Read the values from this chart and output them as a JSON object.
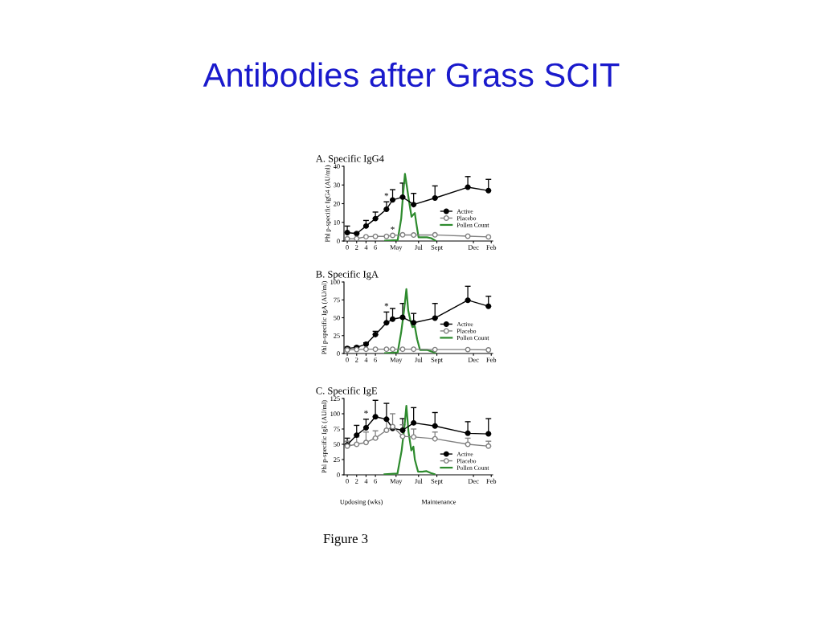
{
  "chart_data": [
    {
      "type": "line",
      "title": "A. Specific IgG4",
      "ylabel": "Phl p-specific IgG4 (AU/ml)",
      "annotations": [
        "Antibodies after Grass SCIT",
        {
          "text": "*",
          "x": 8.36,
          "y": 21
        },
        {
          "text": "*",
          "x": 9.67,
          "y": 3
        }
      ],
      "xlim": [
        -0.7,
        31
      ],
      "xticks": [
        0,
        2,
        4,
        6,
        {
          "value": 10.4,
          "label": "May"
        },
        {
          "value": 15.2,
          "label": "Jul"
        },
        {
          "value": 19.1,
          "label": "Sept"
        },
        {
          "value": 26.9,
          "label": "Dec"
        },
        {
          "value": 30.7,
          "label": "Feb"
        }
      ],
      "ylim": [
        0,
        40
      ],
      "yticks": [
        0,
        10,
        20,
        30,
        40
      ],
      "grid": false,
      "legend": "right",
      "marker": "circle",
      "series": [
        {
          "name": "Active",
          "color": "#000000",
          "x": [
            0,
            2,
            4,
            6,
            8.36,
            9.67,
            11.8,
            14.15,
            18.7,
            25.7,
            30.1
          ],
          "values": [
            4.5,
            4,
            8,
            12,
            17,
            22,
            23.5,
            19.5,
            23,
            28.8,
            27
          ],
          "errors": [
            [
              4.5,
              8
            ],
            [
              4,
              4.5
            ],
            [
              8,
              11
            ],
            [
              12,
              15.5
            ],
            [
              17,
              21
            ],
            [
              22,
              27.5
            ],
            [
              23.5,
              31
            ],
            [
              19.5,
              25.5
            ],
            [
              23,
              29.5
            ],
            [
              28.8,
              34.5
            ],
            [
              27,
              33
            ]
          ]
        },
        {
          "name": "Placebo",
          "color": "#808080",
          "x": [
            0,
            2,
            4,
            6,
            8.36,
            9.67,
            11.8,
            14.15,
            18.7,
            25.7,
            30.1
          ],
          "values": [
            1.2,
            1.3,
            2.3,
            2.5,
            2.5,
            3,
            3.3,
            3.2,
            3.3,
            2.6,
            2.2
          ]
        },
        {
          "name": "Pollen Count",
          "color": "#2e8b2e",
          "marker": "none",
          "x": [
            8.06,
            10.75,
            11.5,
            11.9,
            12.3,
            12.66,
            13.25,
            13.7,
            14.4,
            14.75,
            15.2,
            16.1,
            17.0,
            17.9,
            18.8
          ],
          "values": [
            0.2,
            0.5,
            12,
            25,
            36,
            30,
            20,
            13,
            15,
            9,
            2,
            2,
            2,
            1.5,
            0.2
          ]
        }
      ]
    },
    {
      "type": "line",
      "title": "B. Specific IgA",
      "ylabel": "Phl p-specific IgA (AU/ml)",
      "annotations": [
        {
          "text": "*",
          "x": 8.36,
          "y": 58
        }
      ],
      "xlim": [
        -0.7,
        31
      ],
      "xticks": [
        0,
        2,
        4,
        6,
        {
          "value": 10.4,
          "label": "May"
        },
        {
          "value": 15.2,
          "label": "Jul"
        },
        {
          "value": 19.1,
          "label": "Sept"
        },
        {
          "value": 26.9,
          "label": "Dec"
        },
        {
          "value": 30.7,
          "label": "Feb"
        }
      ],
      "ylim": [
        0,
        100
      ],
      "yticks": [
        0,
        25,
        50,
        75,
        100
      ],
      "grid": false,
      "legend": "right",
      "marker": "circle",
      "series": [
        {
          "name": "Active",
          "color": "#000000",
          "x": [
            0,
            2,
            4,
            6,
            8.36,
            9.67,
            11.8,
            14.15,
            18.7,
            25.7,
            30.1
          ],
          "values": [
            7,
            8.5,
            13,
            26.5,
            43,
            48,
            50.5,
            43,
            49.5,
            74.5,
            66
          ],
          "errors": [
            [
              7,
              9
            ],
            [
              8.5,
              10
            ],
            [
              13,
              15
            ],
            [
              26.5,
              31
            ],
            [
              43,
              58
            ],
            [
              48,
              63
            ],
            [
              50.5,
              70
            ],
            [
              43,
              56
            ],
            [
              49.5,
              70
            ],
            [
              74.5,
              94
            ],
            [
              66,
              80
            ]
          ]
        },
        {
          "name": "Placebo",
          "color": "#808080",
          "x": [
            0,
            2,
            4,
            6,
            8.36,
            9.67,
            11.8,
            14.15,
            18.7,
            25.7,
            30.1
          ],
          "values": [
            5,
            5.5,
            6,
            6,
            6,
            6,
            6,
            6,
            5.5,
            5.5,
            5
          ]
        },
        {
          "name": "Pollen Count",
          "color": "#2e8b2e",
          "marker": "none",
          "x": [
            8.06,
            10.75,
            11.5,
            12.1,
            12.6,
            13.0,
            13.5,
            13.9,
            14.4,
            14.9,
            15.5,
            16.1,
            17.0,
            17.9,
            18.8
          ],
          "values": [
            0.5,
            1.5,
            30,
            60,
            90,
            60,
            45,
            37,
            38,
            20,
            5,
            5,
            5,
            3,
            0.5
          ]
        }
      ]
    },
    {
      "type": "line",
      "title": "C. Specific IgE",
      "ylabel": "Phl p-specific IgE (AU/ml)",
      "annotations": [
        {
          "text": "*",
          "x": 4,
          "y": 91
        },
        "Updosing (wks)",
        "Maintenance",
        "Figure 3"
      ],
      "xlim": [
        -0.7,
        31
      ],
      "xticks": [
        0,
        2,
        4,
        6,
        {
          "value": 10.4,
          "label": "May"
        },
        {
          "value": 15.2,
          "label": "Jul"
        },
        {
          "value": 19.1,
          "label": "Sept"
        },
        {
          "value": 26.9,
          "label": "Dec"
        },
        {
          "value": 30.7,
          "label": "Feb"
        }
      ],
      "ylim": [
        0,
        125
      ],
      "yticks": [
        0,
        25,
        50,
        75,
        100,
        125
      ],
      "grid": false,
      "legend": "lower right",
      "marker": "circle",
      "series": [
        {
          "name": "Active",
          "color": "#000000",
          "x": [
            0,
            2,
            4,
            6,
            8.36,
            9.67,
            11.8,
            14.15,
            18.7,
            25.7,
            30.1
          ],
          "values": [
            49,
            65,
            77,
            95,
            91,
            76,
            73,
            85,
            80,
            68,
            67
          ],
          "errors": [
            [
              49,
              60
            ],
            [
              65,
              81
            ],
            [
              77,
              91
            ],
            [
              95,
              122
            ],
            [
              91,
              117
            ],
            null,
            [
              73,
              92
            ],
            [
              85,
              110
            ],
            [
              80,
              102
            ],
            [
              68,
              87
            ],
            [
              67,
              92
            ]
          ]
        },
        {
          "name": "Placebo",
          "color": "#808080",
          "x": [
            0,
            2,
            4,
            6,
            8.36,
            9.67,
            11.8,
            14.15,
            18.7,
            25.7,
            30.1
          ],
          "values": [
            47,
            50,
            53,
            60,
            73,
            79,
            63,
            62,
            59,
            50,
            47
          ],
          "errors": [
            [
              47,
              55
            ],
            [
              50,
              62
            ],
            [
              53,
              70
            ],
            [
              60,
              72
            ],
            [
              73,
              90
            ],
            [
              79,
              100
            ],
            [
              63,
              82
            ],
            [
              62,
              75
            ],
            [
              59,
              70
            ],
            [
              50,
              60
            ],
            [
              47,
              55
            ]
          ]
        },
        {
          "name": "Pollen Count",
          "color": "#2e8b2e",
          "marker": "none",
          "x": [
            7.94,
            10.7,
            11.6,
            12.2,
            12.6,
            13.06,
            13.65,
            14.1,
            14.4,
            15.1,
            16.0,
            16.9,
            17.8,
            18.6
          ],
          "values": [
            1,
            2,
            40,
            80,
            113,
            70,
            40,
            46,
            25,
            5,
            5,
            6,
            3,
            1
          ]
        }
      ]
    }
  ]
}
